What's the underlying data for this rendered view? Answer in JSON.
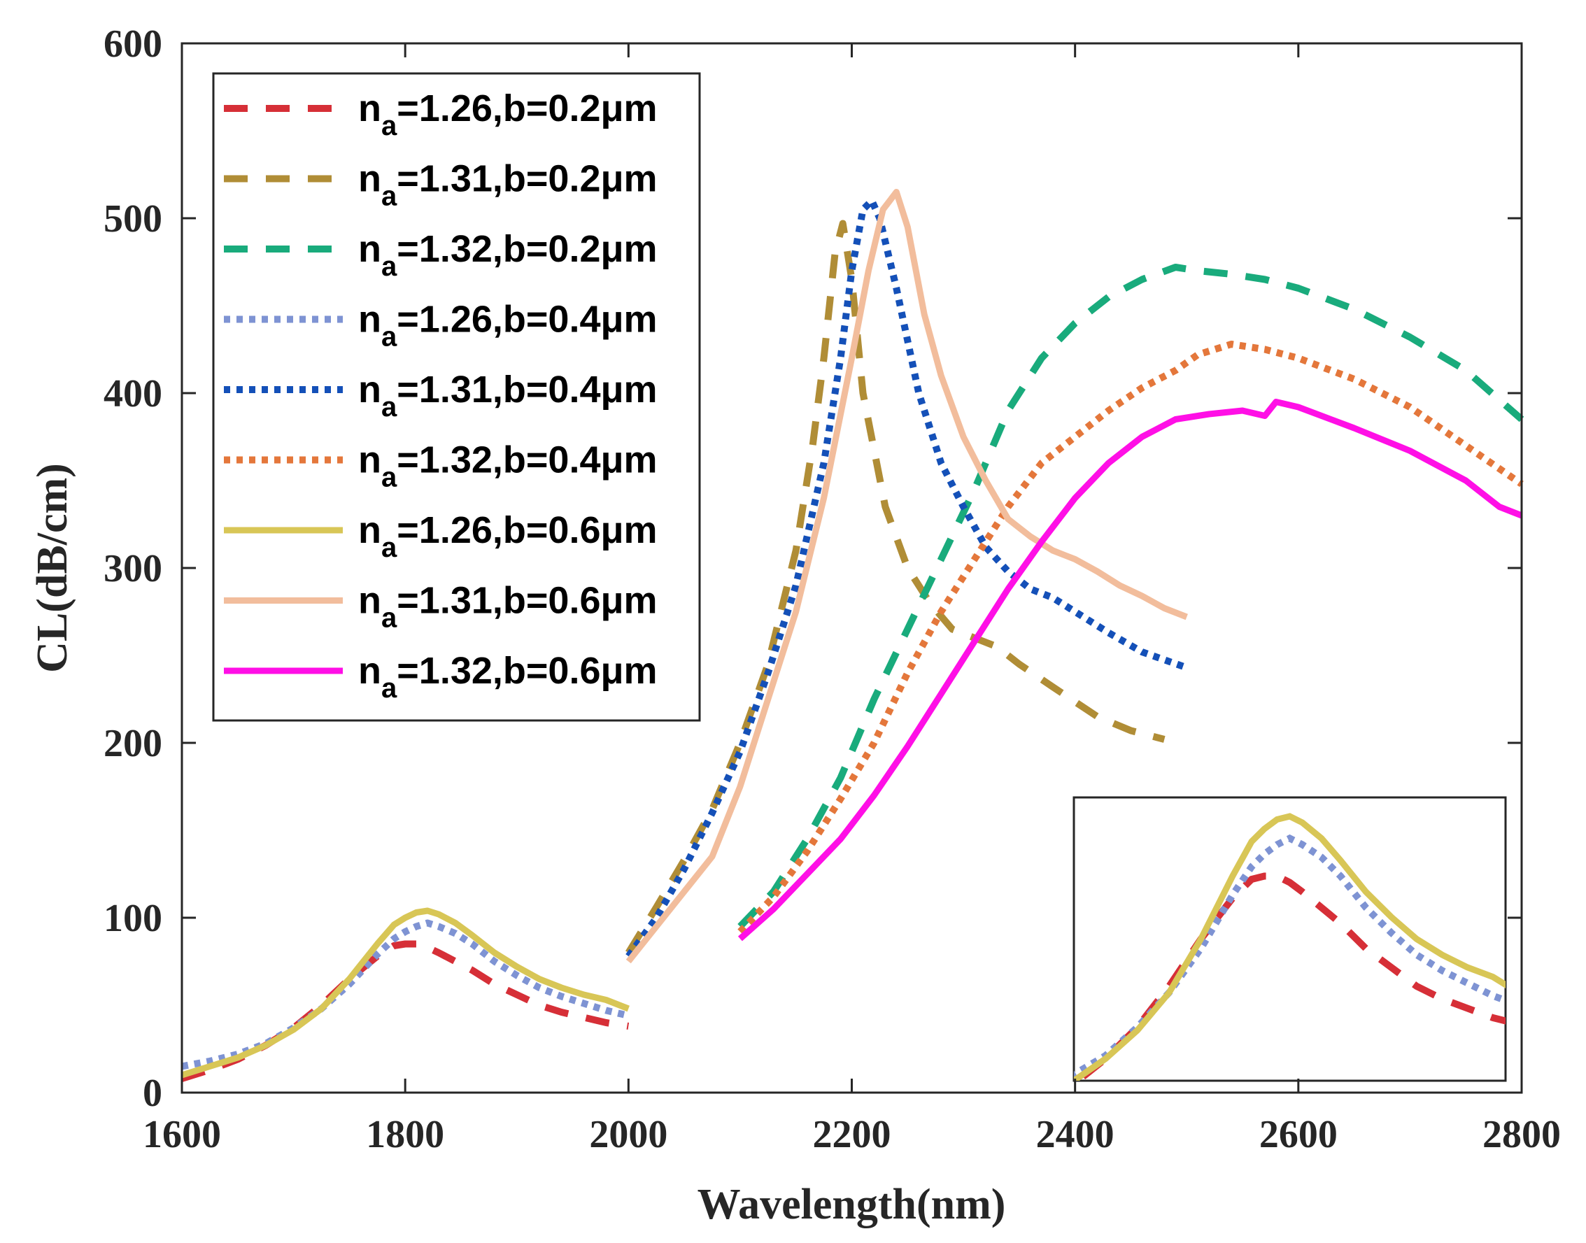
{
  "chart_data": {
    "type": "line",
    "title": "",
    "xlabel": "Wavelength(nm)",
    "ylabel": "CL(dB/cm)",
    "xlim": [
      1600,
      2800
    ],
    "ylim": [
      0,
      600
    ],
    "xticks": [
      "1600",
      "1800",
      "2000",
      "2200",
      "2400",
      "2600",
      "2800"
    ],
    "yticks": [
      "0",
      "100",
      "200",
      "300",
      "400",
      "500",
      "600"
    ],
    "legend_position": "top-left",
    "legend_prefix": "n",
    "legend_sub": "a",
    "series": [
      {
        "name": "n_a=1.26,b=0.2μm",
        "label": "=1.26,b=0.2μm",
        "color": "#d62f37",
        "style": "dashed",
        "x": [
          1600,
          1625,
          1650,
          1675,
          1700,
          1725,
          1750,
          1775,
          1790,
          1800,
          1810,
          1820,
          1830,
          1845,
          1860,
          1880,
          1900,
          1920,
          1940,
          1960,
          1980,
          2000
        ],
        "y": [
          8,
          13,
          19,
          27,
          37,
          50,
          65,
          78,
          84,
          85,
          85,
          83,
          80,
          75,
          70,
          62,
          56,
          50,
          46,
          43,
          40,
          38
        ]
      },
      {
        "name": "n_a=1.31,b=0.2μm",
        "label": "=1.31,b=0.2μm",
        "color": "#b08d36",
        "style": "dashed",
        "x": [
          2000,
          2025,
          2050,
          2075,
          2100,
          2125,
          2150,
          2165,
          2175,
          2185,
          2192,
          2200,
          2210,
          2230,
          2250,
          2270,
          2290,
          2310,
          2330,
          2350,
          2380,
          2420,
          2450,
          2480
        ],
        "y": [
          80,
          106,
          133,
          162,
          200,
          245,
          310,
          370,
          420,
          480,
          497,
          465,
          400,
          335,
          300,
          280,
          265,
          260,
          255,
          245,
          232,
          215,
          207,
          202
        ]
      },
      {
        "name": "n_a=1.32,b=0.2μm",
        "label": "=1.32,b=0.2μm",
        "color": "#19ab7c",
        "style": "dashed",
        "x": [
          2100,
          2130,
          2160,
          2190,
          2220,
          2250,
          2280,
          2310,
          2340,
          2370,
          2400,
          2430,
          2460,
          2490,
          2510,
          2540,
          2570,
          2600,
          2650,
          2700,
          2750,
          2800
        ],
        "y": [
          95,
          115,
          145,
          180,
          225,
          265,
          305,
          345,
          390,
          420,
          440,
          455,
          465,
          472,
          470,
          468,
          465,
          460,
          448,
          432,
          413,
          385
        ]
      },
      {
        "name": "n_a=1.26,b=0.4μm",
        "label": "=1.26,b=0.4μm",
        "color": "#7e93d3",
        "style": "dotted",
        "x": [
          1600,
          1625,
          1650,
          1675,
          1700,
          1725,
          1750,
          1775,
          1790,
          1800,
          1810,
          1820,
          1830,
          1845,
          1860,
          1880,
          1900,
          1920,
          1940,
          1960,
          1980,
          2000
        ],
        "y": [
          15,
          18,
          22,
          28,
          37,
          48,
          62,
          79,
          88,
          92,
          95,
          97,
          95,
          91,
          85,
          75,
          67,
          60,
          55,
          51,
          47,
          44
        ]
      },
      {
        "name": "n_a=1.31,b=0.4μm",
        "label": "=1.31,b=0.4μm",
        "color": "#1450b8",
        "style": "dotted",
        "x": [
          2000,
          2025,
          2050,
          2075,
          2100,
          2125,
          2150,
          2175,
          2190,
          2200,
          2210,
          2218,
          2225,
          2240,
          2260,
          2280,
          2300,
          2320,
          2340,
          2360,
          2380,
          2400,
          2430,
          2460,
          2500
        ],
        "y": [
          78,
          100,
          128,
          160,
          195,
          240,
          290,
          360,
          420,
          470,
          505,
          510,
          500,
          460,
          400,
          360,
          335,
          312,
          298,
          288,
          283,
          275,
          263,
          252,
          243
        ]
      },
      {
        "name": "n_a=1.32,b=0.4μm",
        "label": "=1.32,b=0.4μm",
        "color": "#e4773b",
        "style": "dotted",
        "x": [
          2100,
          2130,
          2160,
          2190,
          2220,
          2250,
          2280,
          2310,
          2340,
          2370,
          2400,
          2430,
          2460,
          2490,
          2510,
          2540,
          2570,
          2600,
          2650,
          2700,
          2750,
          2800
        ],
        "y": [
          92,
          112,
          138,
          168,
          200,
          240,
          275,
          305,
          335,
          360,
          375,
          390,
          403,
          413,
          422,
          428,
          425,
          420,
          408,
          392,
          370,
          348
        ]
      },
      {
        "name": "n_a=1.26,b=0.6μm",
        "label": "=1.26,b=0.6μm",
        "color": "#d8c656",
        "style": "solid",
        "x": [
          1600,
          1625,
          1650,
          1675,
          1700,
          1725,
          1750,
          1775,
          1790,
          1800,
          1810,
          1820,
          1830,
          1845,
          1860,
          1880,
          1900,
          1920,
          1940,
          1960,
          1980,
          2000
        ],
        "y": [
          10,
          15,
          20,
          27,
          36,
          48,
          65,
          85,
          96,
          100,
          103,
          104,
          102,
          97,
          90,
          80,
          72,
          65,
          60,
          56,
          53,
          48
        ]
      },
      {
        "name": "n_a=1.31,b=0.6μm",
        "label": "=1.31,b=0.6μm",
        "color": "#f2bd9c",
        "style": "solid",
        "x": [
          2000,
          2025,
          2050,
          2075,
          2100,
          2125,
          2150,
          2175,
          2200,
          2215,
          2228,
          2240,
          2250,
          2265,
          2280,
          2300,
          2320,
          2340,
          2360,
          2380,
          2400,
          2420,
          2440,
          2460,
          2480,
          2500
        ],
        "y": [
          75,
          95,
          115,
          135,
          175,
          225,
          275,
          340,
          420,
          470,
          505,
          515,
          495,
          445,
          410,
          375,
          350,
          328,
          318,
          310,
          305,
          298,
          290,
          284,
          277,
          272
        ]
      },
      {
        "name": "n_a=1.32,b=0.6μm",
        "label": "=1.32,b=0.6μm",
        "color": "#ff0fe6",
        "style": "solid",
        "x": [
          2100,
          2130,
          2160,
          2190,
          2220,
          2250,
          2280,
          2310,
          2340,
          2370,
          2400,
          2430,
          2460,
          2490,
          2520,
          2550,
          2570,
          2580,
          2600,
          2650,
          2700,
          2750,
          2780,
          2800
        ],
        "y": [
          88,
          105,
          125,
          145,
          170,
          198,
          228,
          258,
          288,
          315,
          340,
          360,
          375,
          385,
          388,
          390,
          387,
          395,
          392,
          380,
          367,
          350,
          335,
          330
        ]
      }
    ]
  }
}
